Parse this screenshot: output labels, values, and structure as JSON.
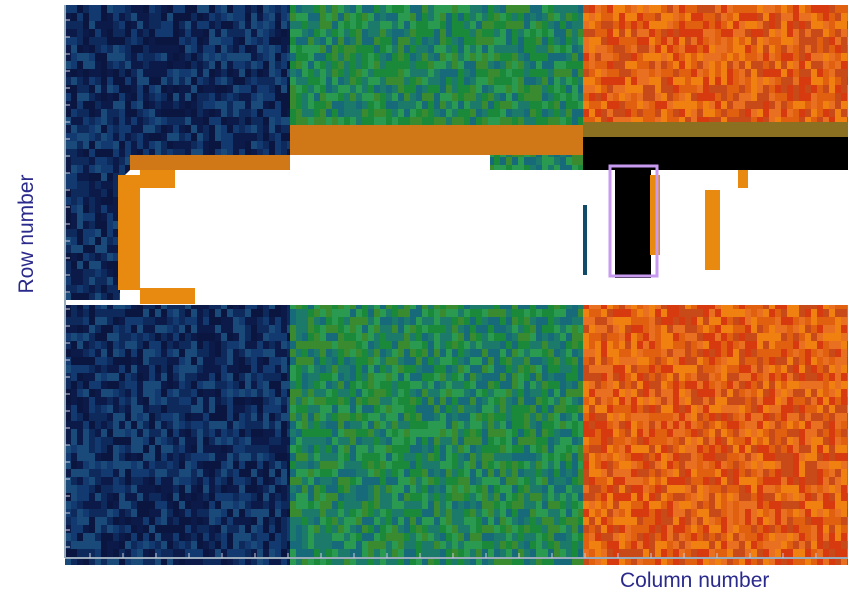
{
  "y_axis_label": "Row number",
  "x_axis_label": "Column number"
}
